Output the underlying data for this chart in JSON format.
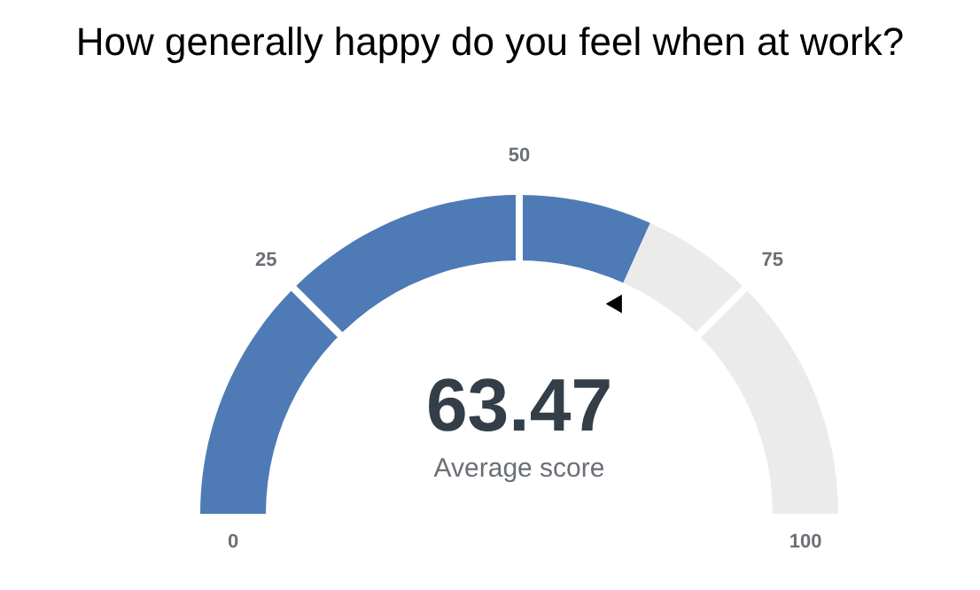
{
  "chart_data": {
    "type": "donut",
    "title": "How generally happy do you feel when at work?",
    "categories": [
      null,
      null
    ],
    "values": [
      63.47,
      36.53
    ],
    "value_labels": [
      "63.47",
      null
    ],
    "colors": [
      "#4e7bb5",
      "#ebebeb"
    ],
    "annotations": [
      "Average score",
      "0",
      "25",
      "50",
      "75",
      "100"
    ]
  }
}
